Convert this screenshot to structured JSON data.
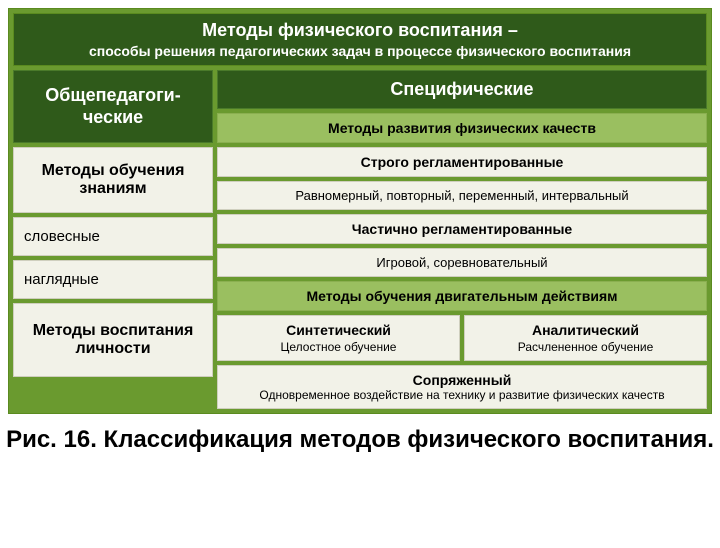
{
  "colors": {
    "outer_bg": "#6a9a2f",
    "dark_box": "#2f5a1a",
    "med_box": "#9abf60",
    "light_box": "#f2f2e8",
    "page_bg": "#ffffff",
    "text_dark": "#000000",
    "text_light": "#ffffff"
  },
  "header": {
    "title": "Методы физического воспитания –",
    "subtitle": "способы решения педагогических задач в процессе физического воспитания"
  },
  "left": {
    "general": "Общепедагоги-\nческие",
    "methods_knowledge": "Методы обучения знаниям",
    "verbal": "словесные",
    "visual": "наглядные",
    "personality": "Методы воспитания личности"
  },
  "right": {
    "specific": "Специфические",
    "phys_qual": "Методы развития физических качеств",
    "strict": "Строго регламентированные",
    "strict_sub": "Равномерный, повторный, переменный, интервальный",
    "partial": "Частично регламентированные",
    "partial_sub": "Игровой, соревновательный",
    "motor": "Методы обучения двигательным действиям",
    "synthetic": "Синтетический",
    "synthetic_sub": "Целостное обучение",
    "analytical": "Аналитический",
    "analytical_sub": "Расчлененное обучение",
    "combined": "Сопряженный",
    "combined_sub": "Одновременное воздействие на технику и развитие физических качеств"
  },
  "caption": "Рис. 16. Классификация методов физического воспитания."
}
